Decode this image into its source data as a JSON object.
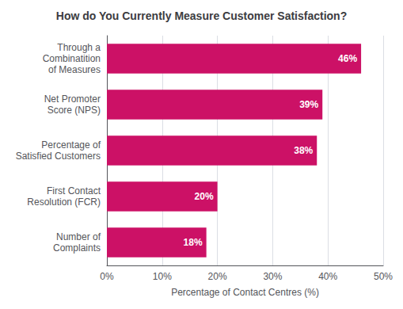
{
  "chart_data": {
    "type": "bar",
    "orientation": "horizontal",
    "title": "How do You Currently Measure Customer Satisfaction?",
    "xlabel": "Percentage of Contact Centres (%)",
    "categories": [
      "Number of\nComplaints",
      "First Contact\nResolution (FCR)",
      "Percentage of\nSatisfied Customers",
      "Net Promoter\nScore (NPS)",
      "Through a\nCombinatition\nof Measures"
    ],
    "values": [
      18,
      20,
      38,
      39,
      46
    ],
    "value_labels": [
      "18%",
      "20%",
      "38%",
      "39%",
      "46%"
    ],
    "data_labels": true,
    "color": "#cc1166",
    "xlim": [
      0,
      50
    ],
    "xticks": [
      {
        "value": 0,
        "label": "0%"
      },
      {
        "value": 10,
        "label": "10%"
      },
      {
        "value": 20,
        "label": "20%"
      },
      {
        "value": 30,
        "label": "30%"
      },
      {
        "value": 40,
        "label": "40%"
      },
      {
        "value": 50,
        "label": "50%"
      }
    ],
    "grid": true
  }
}
